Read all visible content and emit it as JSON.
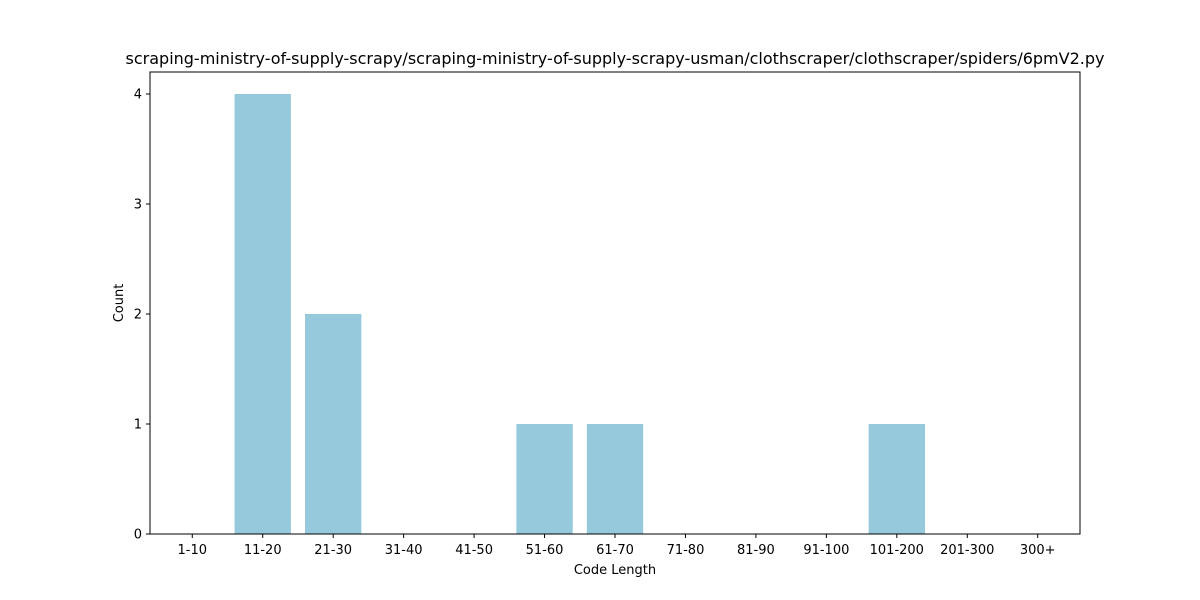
{
  "chart_data": {
    "type": "bar",
    "title": "scraping-ministry-of-supply-scrapy/scraping-ministry-of-supply-scrapy-usman/clothscraper/clothscraper/spiders/6pmV2.py",
    "xlabel": "Code Length",
    "ylabel": "Count",
    "categories": [
      "1-10",
      "11-20",
      "21-30",
      "31-40",
      "41-50",
      "51-60",
      "61-70",
      "71-80",
      "81-90",
      "91-100",
      "101-200",
      "201-300",
      "300+"
    ],
    "values": [
      0,
      4,
      2,
      0,
      0,
      1,
      1,
      0,
      0,
      0,
      1,
      0,
      0
    ],
    "ylim": [
      0,
      4.2
    ],
    "yticks": [
      0,
      1,
      2,
      3,
      4
    ],
    "bar_color": "#96c9dc",
    "grid": false
  }
}
